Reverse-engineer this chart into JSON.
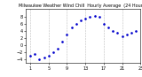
{
  "title": "Milwaukee Weather Wind Chill  Hourly Average  (24 Hours)",
  "hours": [
    1,
    2,
    3,
    4,
    5,
    6,
    7,
    8,
    9,
    10,
    11,
    12,
    13,
    14,
    15,
    16,
    17,
    18,
    19,
    20,
    21,
    22,
    23,
    24
  ],
  "wind_chill": [
    -3,
    -2.5,
    -4,
    -3.5,
    -3,
    -2,
    -1,
    1,
    3,
    5,
    6,
    7,
    7.5,
    8,
    8.2,
    8,
    6,
    5,
    4,
    3.5,
    2.5,
    3,
    3.5,
    4
  ],
  "dot_color": "#0000cc",
  "bg_color": "#ffffff",
  "grid_color": "#aaaaaa",
  "ylim": [
    -5,
    10
  ],
  "xlim": [
    0,
    25
  ],
  "title_fontsize": 3.5,
  "tick_fontsize": 3.5,
  "xticks": [
    1,
    5,
    9,
    13,
    17,
    21,
    25
  ],
  "yticks": [
    -4,
    -2,
    0,
    2,
    4,
    6,
    8
  ]
}
